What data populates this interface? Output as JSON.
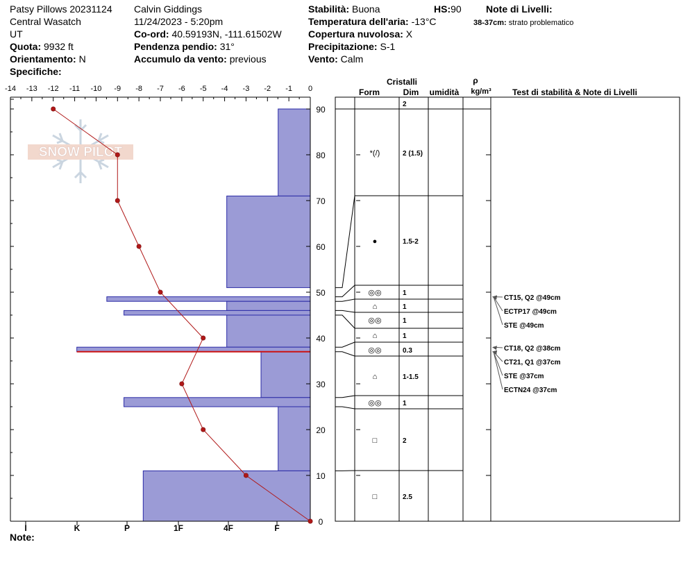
{
  "header": {
    "col1": {
      "site": "Patsy Pillows 20231124",
      "range": "Central Wasatch",
      "state": "UT",
      "quota_label": "Quota:",
      "quota_value": "9932 ft",
      "orient_label": "Orientamento:",
      "orient_value": "N",
      "spec_label": "Specifiche:"
    },
    "col2": {
      "observer": "Calvin Giddings",
      "datetime": "11/24/2023 - 5:20pm",
      "coord_label": "Co-ord:",
      "coord_value": "40.59193N, -111.61502W",
      "slope_label": "Pendenza pendio:",
      "slope_value": "31°",
      "wind_load_label": "Accumulo da vento:",
      "wind_load_value": "previous"
    },
    "col3": {
      "stab_label": "Stabilità:",
      "stab_value": "Buona",
      "hs_label": "HS:",
      "hs_value": "90",
      "air_label": "Temperatura dell'aria:",
      "air_value": "-13°C",
      "cloud_label": "Copertura nuvolosa:",
      "cloud_value": "X",
      "precip_label": "Precipitazione:",
      "precip_value": "S-1",
      "wind_label": "Vento:",
      "wind_value": "Calm"
    },
    "col4": {
      "notes_title": "Note di Livelli:",
      "note_depth": "38-37cm:",
      "note_text": "strato problematico"
    }
  },
  "footer": {
    "note_label": "Note:"
  },
  "logo_text": "SNOW PILOT",
  "colors": {
    "bar_fill": "#9b9bd6",
    "bar_stroke": "#2a2aa6",
    "temp_line": "#b01818",
    "problem_layer": "#cc1111"
  },
  "table_headers": {
    "cristalli": "Cristalli",
    "form": "Form",
    "dim": "Dim",
    "umidita": "umidità",
    "rho": "ρ",
    "density": "kg/m³",
    "tests": "Test di stabilità & Note di Livelli"
  },
  "chart_data": {
    "type": "snow-profile",
    "x_temp_ticks": [
      "-14",
      "-13",
      "-12",
      "-11",
      "-10",
      "-9",
      "-8",
      "-7",
      "-6",
      "-5",
      "-4",
      "-3",
      "-2",
      "-1",
      "0"
    ],
    "hardness_ticks": [
      "I",
      "K",
      "P",
      "1F",
      "4F",
      "F"
    ],
    "y_ticks": [
      "0",
      "10",
      "20",
      "30",
      "40",
      "50",
      "60",
      "70",
      "80",
      "90"
    ],
    "ylim": [
      0,
      90
    ],
    "temp_xlim": [
      -14,
      0
    ],
    "temperature_profile": [
      {
        "height": 90,
        "temp": -12
      },
      {
        "height": 80,
        "temp": -9
      },
      {
        "height": 70,
        "temp": -9
      },
      {
        "height": 60,
        "temp": -8
      },
      {
        "height": 50,
        "temp": -7
      },
      {
        "height": 40,
        "temp": -5
      },
      {
        "height": 30,
        "temp": -6
      },
      {
        "height": 20,
        "temp": -5
      },
      {
        "height": 10,
        "temp": -3
      },
      {
        "height": 0,
        "temp": 0
      }
    ],
    "layers": [
      {
        "top": 90,
        "bottom": 71,
        "hardness_units": 1.5,
        "form": "*(/)",
        "dim": "2 (1.5)"
      },
      {
        "top": 71,
        "bottom": 51,
        "hardness_units": 3.9,
        "form": "●",
        "dim": "1.5-2"
      },
      {
        "top": 49,
        "bottom": 48,
        "hardness_units": 9.5,
        "form": "◎◎",
        "dim": "1"
      },
      {
        "top": 48,
        "bottom": 46,
        "hardness_units": 3.9,
        "form": "⌂",
        "dim": "1"
      },
      {
        "top": 46,
        "bottom": 45,
        "hardness_units": 8.7,
        "form": "◎◎",
        "dim": "1"
      },
      {
        "top": 45,
        "bottom": 38,
        "hardness_units": 3.9,
        "form": "⌂",
        "dim": "1"
      },
      {
        "top": 38,
        "bottom": 37,
        "hardness_units": 10.9,
        "form": "◎◎",
        "dim": "0.3"
      },
      {
        "top": 37,
        "bottom": 27,
        "hardness_units": 2.3,
        "form": "⌂",
        "dim": "1-1.5"
      },
      {
        "top": 27,
        "bottom": 25,
        "hardness_units": 8.7,
        "form": "◎◎",
        "dim": "1"
      },
      {
        "top": 25,
        "bottom": 11,
        "hardness_units": 1.5,
        "form": "□",
        "dim": "2"
      },
      {
        "top": 11,
        "bottom": 0,
        "hardness_units": 7.8,
        "form": "□",
        "dim": "2.5"
      }
    ],
    "layer_top_dim": "2",
    "stability_tests": [
      {
        "text": "CT15, Q2 @49cm",
        "at": 49
      },
      {
        "text": "ECTP17 @49cm",
        "at": 49
      },
      {
        "text": "STE @49cm",
        "at": 49
      },
      {
        "text": "CT18, Q2 @38cm",
        "at": 38
      },
      {
        "text": "CT21, Q1 @37cm",
        "at": 37
      },
      {
        "text": "STE @37cm",
        "at": 37
      },
      {
        "text": "ECTN24 @37cm",
        "at": 37
      }
    ],
    "problem_layer_height": 37
  }
}
